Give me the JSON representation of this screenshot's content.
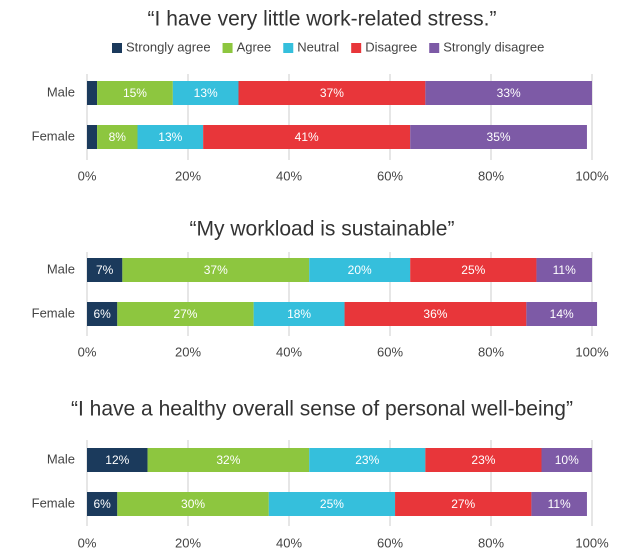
{
  "chart_data": [
    {
      "type": "stacked_bar",
      "orientation": "horizontal",
      "title": "“I have very little work-related stress.”",
      "categories": [
        "Male",
        "Female"
      ],
      "series": [
        {
          "name": "Strongly agree",
          "color": "#1b3a5c",
          "values": [
            2,
            2
          ],
          "value_labels": [
            null,
            null
          ]
        },
        {
          "name": "Agree",
          "color": "#8dc63f",
          "values": [
            15,
            8
          ],
          "value_labels": [
            "15%",
            "8%"
          ]
        },
        {
          "name": "Neutral",
          "color": "#35bfdc",
          "values": [
            13,
            13
          ],
          "value_labels": [
            "13%",
            "13%"
          ]
        },
        {
          "name": "Disagree",
          "color": "#e8363a",
          "values": [
            37,
            41
          ],
          "value_labels": [
            "37%",
            "41%"
          ]
        },
        {
          "name": "Strongly disagree",
          "color": "#7d5aa6",
          "values": [
            33,
            35
          ],
          "value_labels": [
            "33%",
            "35%"
          ]
        }
      ],
      "xlim": [
        0,
        100
      ],
      "xticks": [
        {
          "value": 0,
          "label": "0%"
        },
        {
          "value": 20,
          "label": "20%"
        },
        {
          "value": 40,
          "label": "40%"
        },
        {
          "value": 60,
          "label": "60%"
        },
        {
          "value": 80,
          "label": "80%"
        },
        {
          "value": 100,
          "label": "100%"
        }
      ],
      "grid": true,
      "legend": "top"
    },
    {
      "type": "stacked_bar",
      "orientation": "horizontal",
      "title": "“My workload is sustainable”",
      "categories": [
        "Male",
        "Female"
      ],
      "series": [
        {
          "color": "#1b3a5c",
          "values": [
            7,
            6
          ],
          "value_labels": [
            "7%",
            "6%"
          ]
        },
        {
          "color": "#8dc63f",
          "values": [
            37,
            27
          ],
          "value_labels": [
            "37%",
            "27%"
          ]
        },
        {
          "color": "#35bfdc",
          "values": [
            20,
            18
          ],
          "value_labels": [
            "20%",
            "18%"
          ]
        },
        {
          "color": "#e8363a",
          "values": [
            25,
            36
          ],
          "value_labels": [
            "25%",
            "36%"
          ]
        },
        {
          "color": "#7d5aa6",
          "values": [
            11,
            14
          ],
          "value_labels": [
            "11%",
            "14%"
          ]
        }
      ],
      "xlim": [
        0,
        100
      ],
      "xticks": [
        {
          "value": 0,
          "label": "0%"
        },
        {
          "value": 20,
          "label": "20%"
        },
        {
          "value": 40,
          "label": "40%"
        },
        {
          "value": 60,
          "label": "60%"
        },
        {
          "value": 80,
          "label": "80%"
        },
        {
          "value": 100,
          "label": "100%"
        }
      ],
      "grid": true
    },
    {
      "type": "stacked_bar",
      "orientation": "horizontal",
      "title": "“I have a healthy overall sense of personal well-being”",
      "categories": [
        "Male",
        "Female"
      ],
      "series": [
        {
          "color": "#1b3a5c",
          "values": [
            12,
            6
          ],
          "value_labels": [
            "12%",
            "6%"
          ]
        },
        {
          "color": "#8dc63f",
          "values": [
            32,
            30
          ],
          "value_labels": [
            "32%",
            "30%"
          ]
        },
        {
          "color": "#35bfdc",
          "values": [
            23,
            25
          ],
          "value_labels": [
            "23%",
            "25%"
          ]
        },
        {
          "color": "#e8363a",
          "values": [
            23,
            27
          ],
          "value_labels": [
            "23%",
            "27%"
          ]
        },
        {
          "color": "#7d5aa6",
          "values": [
            10,
            11
          ],
          "value_labels": [
            "10%",
            "11%"
          ]
        }
      ],
      "xlim": [
        0,
        100
      ],
      "xticks": [
        {
          "value": 0,
          "label": "0%"
        },
        {
          "value": 20,
          "label": "20%"
        },
        {
          "value": 40,
          "label": "40%"
        },
        {
          "value": 60,
          "label": "60%"
        },
        {
          "value": 80,
          "label": "80%"
        },
        {
          "value": 100,
          "label": "100%"
        }
      ],
      "grid": true
    }
  ]
}
